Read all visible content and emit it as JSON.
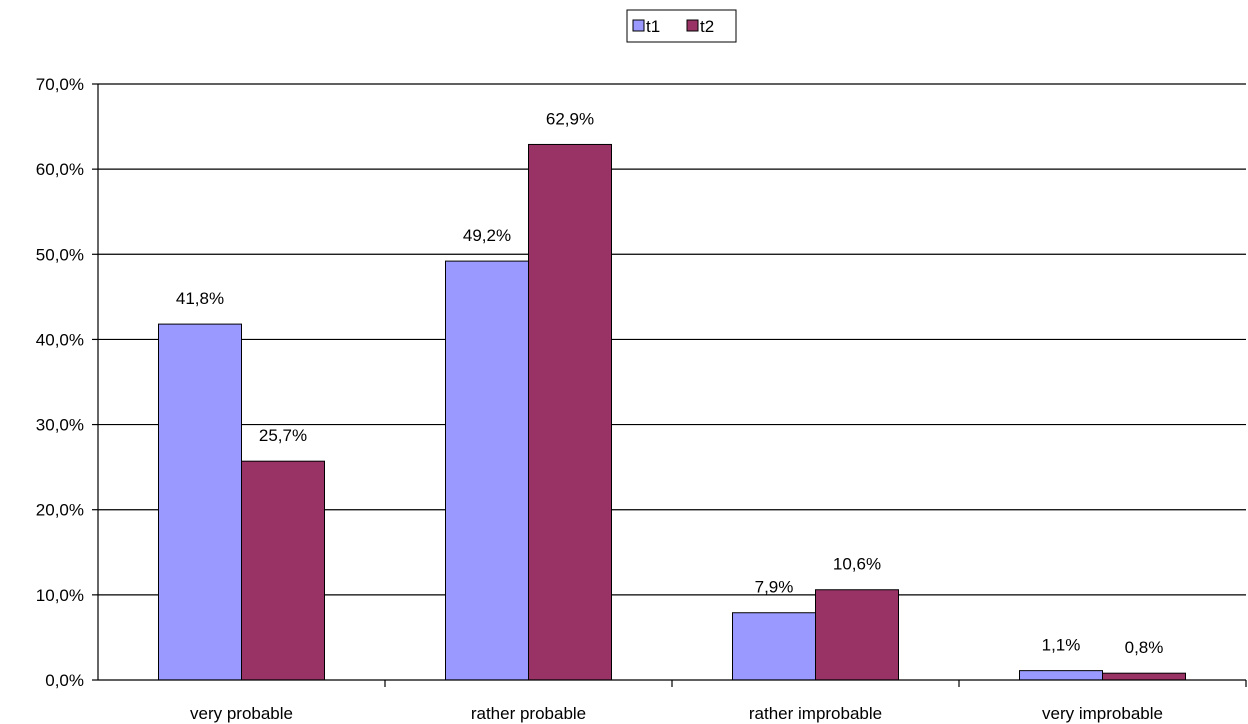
{
  "chart_data": {
    "type": "bar",
    "title": "",
    "xlabel": "",
    "ylabel": "",
    "categories": [
      "very probable",
      "rather probable",
      "rather improbable",
      "very improbable"
    ],
    "series": [
      {
        "name": "t1",
        "values": [
          41.8,
          49.2,
          7.9,
          1.1
        ],
        "labels": [
          "41,8%",
          "49,2%",
          "7,9%",
          "1,1%"
        ],
        "color": "#9999ff"
      },
      {
        "name": "t2",
        "values": [
          25.7,
          62.9,
          10.6,
          0.8
        ],
        "labels": [
          "25,7%",
          "62,9%",
          "10,6%",
          "0,8%"
        ],
        "color": "#993366"
      }
    ],
    "ylim": [
      0,
      70
    ],
    "yticks": [
      0,
      10,
      20,
      30,
      40,
      50,
      60,
      70
    ],
    "ytick_labels": [
      "0,0%",
      "10,0%",
      "20,0%",
      "30,0%",
      "40,0%",
      "50,0%",
      "60,0%",
      "70,0%"
    ],
    "grid": true,
    "legend_position": "top-center"
  }
}
